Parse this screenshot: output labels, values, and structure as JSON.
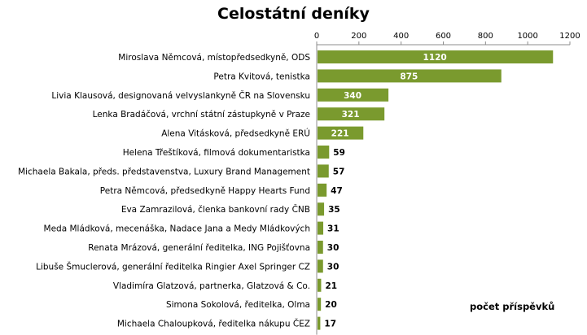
{
  "chart_data": {
    "type": "bar",
    "orientation": "horizontal",
    "title": "Celostátní deníky",
    "xlabel": "počet příspěvků",
    "ylabel": "",
    "xlim": [
      0,
      1200
    ],
    "xticks": [
      0,
      200,
      400,
      600,
      800,
      1000,
      1200
    ],
    "axis_position": "top",
    "grid": false,
    "bar_color": "#7a9a2e",
    "categories": [
      "Miroslava Němcová, místopředsedkyně, ODS",
      "Petra Kvitová, tenistka",
      "Livia Klausová, designovaná velvyslankyně ČR na Slovensku",
      "Lenka Bradáčová, vrchní státní zástupkyně v Praze",
      "Alena Vitásková, předsedkyně ERÚ",
      "Helena Třeštíková, filmová dokumentaristka",
      "Michaela Bakala, předs. představenstva, Luxury Brand Management",
      "Petra Němcová, předsedkyně Happy Hearts Fund",
      "Eva Zamrazilová, členka bankovní rady ČNB",
      "Meda Mládková, mecenáška, Nadace Jana a Medy Mládkových",
      "Renata Mrázová, generální ředitelka, ING Pojišťovna",
      "Libuše Šmuclerová, generální ředitelka Ringier Axel Springer CZ",
      "Vladimíra Glatzová, partnerka, Glatzová & Co.",
      "Simona Sokolová, ředitelka, Olma",
      "Michaela Chaloupková, ředitelka nákupu ČEZ"
    ],
    "values": [
      1120,
      875,
      340,
      321,
      221,
      59,
      57,
      47,
      35,
      31,
      30,
      30,
      21,
      20,
      17
    ]
  }
}
